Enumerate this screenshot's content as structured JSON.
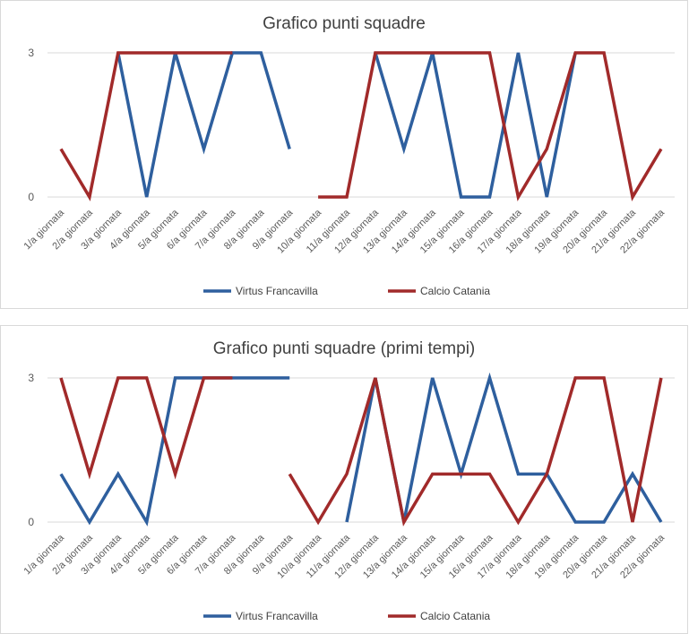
{
  "colors": {
    "series_a": "#2e5f9e",
    "series_b": "#a12a2a",
    "grid": "#d9d9d9"
  },
  "chart_data": [
    {
      "type": "line",
      "title": "Grafico punti squadre",
      "ylim": [
        0,
        3
      ],
      "yticks": [
        "0",
        "3"
      ],
      "grid": true,
      "legend": "bottom",
      "categories": [
        "1/a giornata",
        "2/a giornata",
        "3/a giornata",
        "4/a giornata",
        "5/a giornata",
        "6/a giornata",
        "7/a giornata",
        "8/a giornata",
        "9/a giornata",
        "10/a giornata",
        "11/a giornata",
        "12/a giornata",
        "13/a giornata",
        "14/a giornata",
        "15/a giornata",
        "16/a giornata",
        "17/a giornata",
        "18/a giornata",
        "19/a giornata",
        "20/a giornata",
        "21/a giornata",
        "22/a giornata"
      ],
      "series": [
        {
          "name": "Virtus Francavilla",
          "values": [
            null,
            null,
            3,
            0,
            3,
            1,
            3,
            3,
            1,
            null,
            null,
            3,
            1,
            3,
            0,
            0,
            3,
            0,
            3,
            null,
            null,
            null
          ]
        },
        {
          "name": "Calcio Catania",
          "values": [
            1,
            0,
            3,
            3,
            3,
            3,
            3,
            null,
            null,
            0,
            0,
            3,
            3,
            3,
            3,
            3,
            0,
            1,
            3,
            3,
            0,
            1
          ]
        }
      ]
    },
    {
      "type": "line",
      "title": "Grafico punti squadre (primi tempi)",
      "ylim": [
        0,
        3
      ],
      "yticks": [
        "0",
        "3"
      ],
      "grid": true,
      "legend": "bottom",
      "categories": [
        "1/a giornata",
        "2/a giornata",
        "3/a giornata",
        "4/a giornata",
        "5/a giornata",
        "6/a giornata",
        "7/a giornata",
        "8/a giornata",
        "9/a giornata",
        "10/a giornata",
        "11/a giornata",
        "12/a giornata",
        "13/a giornata",
        "14/a giornata",
        "15/a giornata",
        "16/a giornata",
        "17/a giornata",
        "18/a giornata",
        "19/a giornata",
        "20/a giornata",
        "21/a giornata",
        "22/a giornata"
      ],
      "series": [
        {
          "name": "Virtus Francavilla",
          "values": [
            1,
            0,
            1,
            0,
            3,
            3,
            3,
            3,
            3,
            null,
            0,
            3,
            0,
            3,
            1,
            3,
            1,
            1,
            0,
            0,
            1,
            0
          ]
        },
        {
          "name": "Calcio Catania",
          "values": [
            3,
            1,
            3,
            3,
            1,
            3,
            3,
            null,
            1,
            0,
            1,
            3,
            0,
            1,
            1,
            1,
            0,
            1,
            3,
            3,
            0,
            3
          ]
        }
      ]
    }
  ]
}
